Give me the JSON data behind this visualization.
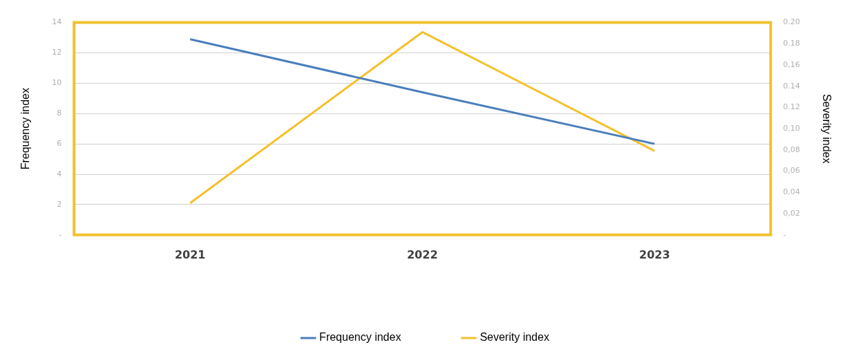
{
  "chart_data": {
    "type": "line",
    "categories": [
      "2021",
      "2022",
      "2023"
    ],
    "series": [
      {
        "name": "Frequency index",
        "color": "#4a7ebb",
        "values": [
          12.9,
          9.4,
          6.0
        ]
      },
      {
        "name": "Severity index",
        "color": "#f5c02a",
        "values": [
          0.03,
          0.191,
          0.079
        ],
        "axis": "y2"
      }
    ],
    "ylabel": "Frequency index",
    "y2label": "Severity index",
    "ylim": [
      0,
      14
    ],
    "yticks": [
      {
        "value": 0,
        "label": "-"
      },
      2,
      4,
      6,
      8,
      10,
      12,
      14
    ],
    "y2lim": [
      0,
      0.2
    ],
    "y2ticks": [
      {
        "value": 0,
        "label": "-"
      },
      {
        "value": 0.02,
        "label": "0,02"
      },
      {
        "value": 0.04,
        "label": "0,04"
      },
      {
        "value": 0.06,
        "label": "0,06"
      },
      {
        "value": 0.08,
        "label": "0,08"
      },
      {
        "value": 0.1,
        "label": "0.10"
      },
      {
        "value": 0.12,
        "label": "0.12"
      },
      {
        "value": 0.14,
        "label": "0.14"
      },
      {
        "value": 0.16,
        "label": "0,16"
      },
      {
        "value": 0.18,
        "label": "0.18"
      },
      {
        "value": 0.2,
        "label": "0.20"
      }
    ],
    "grid": "y",
    "legend": "bottom",
    "marker": "none",
    "line_style": "solid"
  }
}
